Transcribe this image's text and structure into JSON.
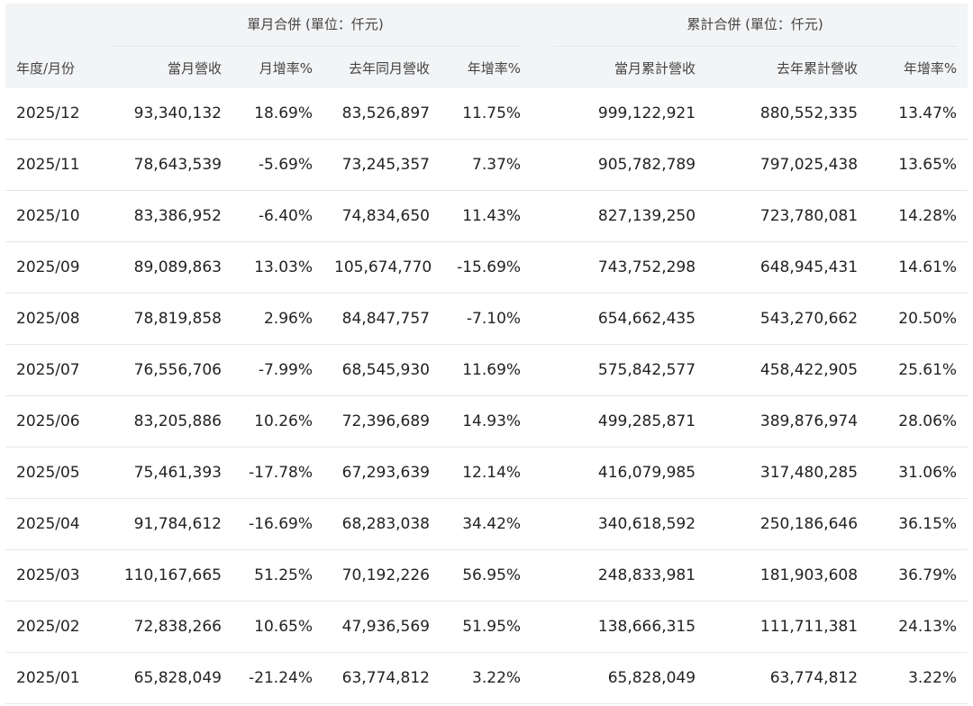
{
  "header": {
    "groups": {
      "monthly": "單月合併 (單位：仟元)",
      "cumulative": "累計合併 (單位：仟元)"
    },
    "columns": [
      "年度/月份",
      "當月營收",
      "月增率%",
      "去年同月營收",
      "年增率%",
      "當月累計營收",
      "去年累計營收",
      "年增率%"
    ]
  },
  "rows": [
    [
      "2025/12",
      "93,340,132",
      "18.69%",
      "83,526,897",
      "11.75%",
      "999,122,921",
      "880,552,335",
      "13.47%"
    ],
    [
      "2025/11",
      "78,643,539",
      "-5.69%",
      "73,245,357",
      "7.37%",
      "905,782,789",
      "797,025,438",
      "13.65%"
    ],
    [
      "2025/10",
      "83,386,952",
      "-6.40%",
      "74,834,650",
      "11.43%",
      "827,139,250",
      "723,780,081",
      "14.28%"
    ],
    [
      "2025/09",
      "89,089,863",
      "13.03%",
      "105,674,770",
      "-15.69%",
      "743,752,298",
      "648,945,431",
      "14.61%"
    ],
    [
      "2025/08",
      "78,819,858",
      "2.96%",
      "84,847,757",
      "-7.10%",
      "654,662,435",
      "543,270,662",
      "20.50%"
    ],
    [
      "2025/07",
      "76,556,706",
      "-7.99%",
      "68,545,930",
      "11.69%",
      "575,842,577",
      "458,422,905",
      "25.61%"
    ],
    [
      "2025/06",
      "83,205,886",
      "10.26%",
      "72,396,689",
      "14.93%",
      "499,285,871",
      "389,876,974",
      "28.06%"
    ],
    [
      "2025/05",
      "75,461,393",
      "-17.78%",
      "67,293,639",
      "12.14%",
      "416,079,985",
      "317,480,285",
      "31.06%"
    ],
    [
      "2025/04",
      "91,784,612",
      "-16.69%",
      "68,283,038",
      "34.42%",
      "340,618,592",
      "250,186,646",
      "36.15%"
    ],
    [
      "2025/03",
      "110,167,665",
      "51.25%",
      "70,192,226",
      "56.95%",
      "248,833,981",
      "181,903,608",
      "36.79%"
    ],
    [
      "2025/02",
      "72,838,266",
      "10.65%",
      "47,936,569",
      "51.95%",
      "138,666,315",
      "111,711,381",
      "24.13%"
    ],
    [
      "2025/01",
      "65,828,049",
      "-21.24%",
      "63,774,812",
      "3.22%",
      "65,828,049",
      "63,774,812",
      "3.22%"
    ]
  ]
}
